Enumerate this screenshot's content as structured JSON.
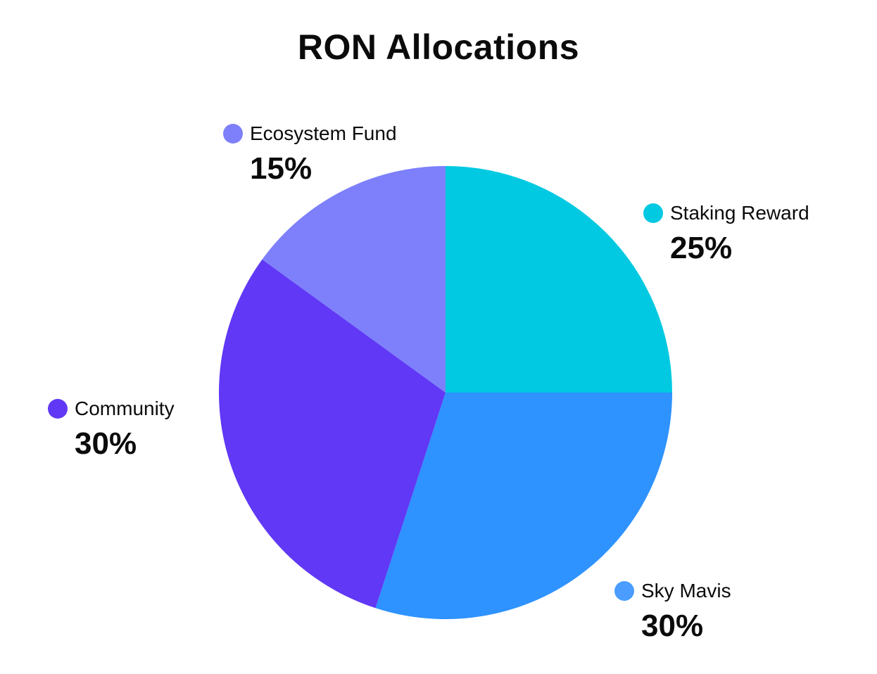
{
  "chart_data": {
    "type": "pie",
    "title": "RON Allocations",
    "slices": [
      {
        "label": "Staking Reward",
        "value": 25,
        "value_label": "25%",
        "color": "#00c9e1",
        "dot_color": "#00c9e1"
      },
      {
        "label": "Sky Mavis",
        "value": 30,
        "value_label": "30%",
        "color": "#2e92ff",
        "dot_color": "#4a9dff"
      },
      {
        "label": "Community",
        "value": 30,
        "value_label": "30%",
        "color": "#6038f5",
        "dot_color": "#6038f5"
      },
      {
        "label": "Ecosystem Fund",
        "value": 15,
        "value_label": "15%",
        "color": "#7d80fa",
        "dot_color": "#7d80fa"
      }
    ],
    "start_angle": "12 o'clock",
    "direction": "clockwise",
    "legend": "labels-outside-slices"
  }
}
